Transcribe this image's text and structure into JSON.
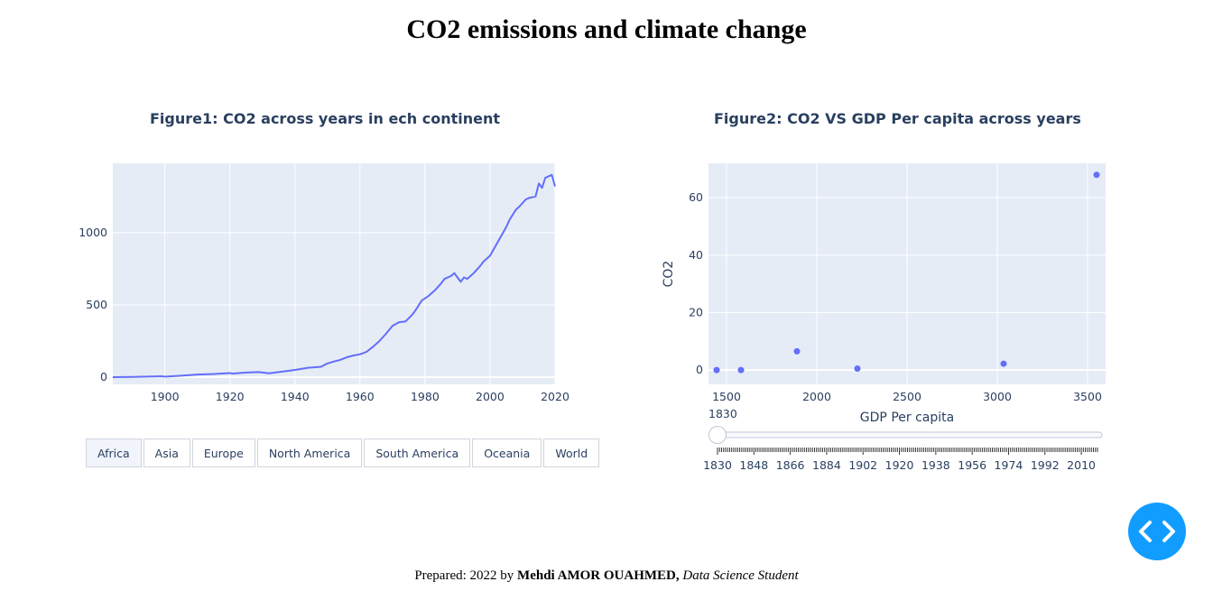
{
  "page": {
    "title": "CO2 emissions and climate change",
    "footer": {
      "prefix": "Prepared: 2022 by",
      "author": "Mehdi AMOR OUAHMED,",
      "role": "Data Science Student"
    }
  },
  "figure1": {
    "title": "Figure1: CO2 across years in ech continent",
    "buttons": [
      "Africa",
      "Asia",
      "Europe",
      "North America",
      "South America",
      "Oceania",
      "World"
    ],
    "active_button": "Africa"
  },
  "figure2": {
    "title": "Figure2: CO2 VS GDP Per capita across years",
    "xlabel": "GDP Per capita",
    "ylabel": "CO2",
    "slider": {
      "current_label": "1830",
      "min": 1830,
      "max": 2018,
      "value": 1830,
      "tick_labels": [
        "1830",
        "1848",
        "1866",
        "1884",
        "1902",
        "1920",
        "1938",
        "1956",
        "1974",
        "1992",
        "2010"
      ]
    }
  },
  "colors": {
    "line": "#636efa",
    "plot_bg": "#e5ecf6",
    "grid": "#ffffff",
    "fab": "#119dff"
  },
  "chart_data": [
    {
      "type": "line",
      "title": "Figure1: CO2 across years in ech continent",
      "xlabel": "",
      "ylabel": "",
      "xlim": [
        1884,
        2020
      ],
      "ylim": [
        -50,
        1480
      ],
      "xticks": [
        1900,
        1920,
        1940,
        1960,
        1980,
        2000,
        2020
      ],
      "yticks": [
        0,
        500,
        1000
      ],
      "grid": true,
      "series": [
        {
          "x": [
            1884,
            1890,
            1895,
            1899,
            1900,
            1905,
            1910,
            1915,
            1920,
            1921,
            1925,
            1929,
            1932,
            1935,
            1940,
            1944,
            1948,
            1950,
            1952,
            1954,
            1956,
            1958,
            1960,
            1962,
            1964,
            1966,
            1968,
            1970,
            1972,
            1974,
            1976,
            1977,
            1979,
            1981,
            1983,
            1985,
            1986,
            1988,
            1989,
            1990,
            1991,
            1992,
            1993,
            1995,
            1997,
            1998,
            2000,
            2001,
            2003,
            2005,
            2006,
            2008,
            2009,
            2011,
            2012,
            2014,
            2015,
            2016,
            2017,
            2018,
            2019,
            2020
          ],
          "y": [
            0,
            2,
            4,
            6,
            3,
            10,
            18,
            22,
            28,
            25,
            32,
            35,
            26,
            35,
            50,
            65,
            72,
            95,
            108,
            120,
            138,
            150,
            158,
            175,
            210,
            250,
            300,
            355,
            380,
            385,
            430,
            460,
            530,
            560,
            600,
            650,
            680,
            700,
            720,
            690,
            660,
            690,
            680,
            720,
            770,
            800,
            840,
            880,
            960,
            1040,
            1090,
            1160,
            1180,
            1230,
            1240,
            1250,
            1340,
            1310,
            1380,
            1390,
            1400,
            1320
          ]
        }
      ]
    },
    {
      "type": "scatter",
      "title": "Figure2: CO2 VS GDP Per capita across years",
      "xlabel": "GDP Per capita",
      "ylabel": "CO2",
      "xlim": [
        1400,
        3600
      ],
      "ylim": [
        -5,
        72
      ],
      "xticks": [
        1500,
        2000,
        2500,
        3000,
        3500
      ],
      "yticks": [
        0,
        20,
        40,
        60
      ],
      "grid": true,
      "series": [
        {
          "x": [
            1445,
            1580,
            1890,
            2225,
            3035,
            3550
          ],
          "y": [
            0,
            0,
            6.5,
            0.5,
            2.2,
            68
          ]
        }
      ]
    }
  ]
}
